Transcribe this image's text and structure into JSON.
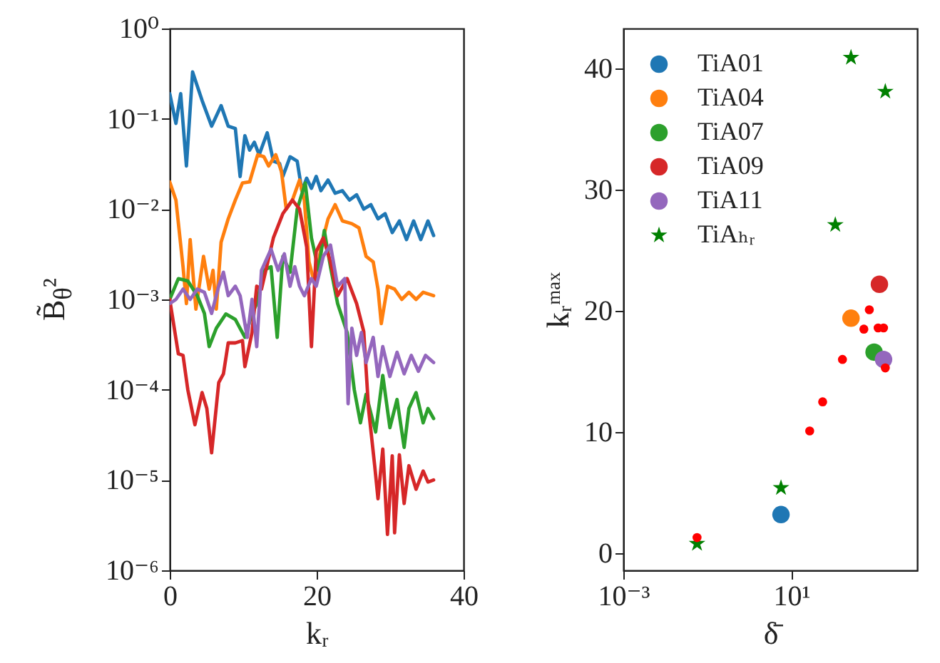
{
  "chart_data": [
    {
      "type": "line",
      "xlabel": "kᵣ",
      "ylabel": "B̃$_{θ}$²",
      "log": true,
      "xlim": [
        0,
        40
      ],
      "xticks": [
        0,
        20,
        40
      ],
      "ylim": [
        1e-06,
        1
      ],
      "yticks": [
        {
          "value": 1e-06,
          "label": "10⁻⁶"
        },
        {
          "value": 1e-05,
          "label": "10⁻⁵"
        },
        {
          "value": 0.0001,
          "label": "10⁻⁴"
        },
        {
          "value": 0.001,
          "label": "10⁻³"
        },
        {
          "value": 0.01,
          "label": "10⁻²"
        },
        {
          "value": 0.1,
          "label": "10⁻¹"
        },
        {
          "value": 1,
          "label": "10⁰"
        }
      ],
      "grid": false,
      "series": [
        {
          "color": "#1f77b4",
          "x": [
            0,
            0.84,
            1.49,
            2.27,
            3.11,
            4.4,
            5.7,
            6.99,
            7.96,
            8.93,
            9.58,
            10.23,
            10.87,
            11.52,
            12.17,
            13.27,
            14.11,
            14.95,
            15.4,
            16.38,
            17.35,
            17.99,
            18.64,
            19.29,
            19.94,
            20.58,
            21.55,
            22.52,
            23.5,
            24.47,
            25.44,
            26.41,
            27.38,
            28.35,
            29.32,
            30.29,
            31.26,
            32.23,
            33.2,
            34.17,
            35.15,
            35.92
          ],
          "values": [
            0.19,
            0.089,
            0.19,
            0.03,
            0.33,
            0.16,
            0.083,
            0.14,
            0.083,
            0.078,
            0.023,
            0.065,
            0.045,
            0.055,
            0.04,
            0.07,
            0.034,
            0.032,
            0.023,
            0.038,
            0.034,
            0.016,
            0.022,
            0.017,
            0.023,
            0.016,
            0.021,
            0.015,
            0.016,
            0.0126,
            0.0144,
            0.01,
            0.0112,
            0.0078,
            0.0089,
            0.0055,
            0.0074,
            0.0046,
            0.0074,
            0.0046,
            0.0074,
            0.0051
          ]
        },
        {
          "color": "#ff7f0e",
          "x": [
            0,
            0.84,
            1.81,
            2.27,
            2.78,
            3.56,
            4.6,
            5.37,
            5.89,
            6.34,
            6.99,
            7.96,
            8.93,
            9.9,
            10.87,
            11.97,
            12.82,
            13.46,
            14.43,
            15.21,
            15.86,
            16.7,
            17.67,
            18.32,
            18.96,
            19.81,
            20.58,
            21.55,
            22.52,
            23.5,
            24.79,
            25.76,
            26.73,
            27.7,
            28.35,
            28.8,
            29.64,
            30.61,
            31.58,
            32.56,
            33.53,
            34.5,
            35.92
          ],
          "values": [
            0.02,
            0.0126,
            0.0023,
            0.0009,
            0.0046,
            0.00078,
            0.003,
            0.0013,
            0.0021,
            0.00078,
            0.0043,
            0.0078,
            0.0126,
            0.0195,
            0.02,
            0.04,
            0.038,
            0.03,
            0.04,
            0.026,
            0.01,
            0.0126,
            0.021,
            0.0126,
            0.0026,
            0.0014,
            0.0038,
            0.0078,
            0.0112,
            0.0074,
            0.0069,
            0.0062,
            0.003,
            0.0026,
            0.0013,
            0.00054,
            0.0014,
            0.0013,
            0.001,
            0.0012,
            0.001,
            0.0012,
            0.0011
          ]
        },
        {
          "color": "#2ca02c",
          "x": [
            0,
            1.17,
            2.46,
            3.75,
            4.72,
            5.37,
            6.34,
            7.64,
            8.93,
            10.23,
            11.2,
            11.84,
            12.82,
            13.79,
            14.63,
            15.4,
            16.38,
            17.35,
            18.45,
            19.29,
            20.26,
            21.04,
            21.88,
            22.85,
            24.15,
            25.12,
            25.96,
            26.73,
            28.03,
            29,
            29.97,
            30.94,
            31.91,
            32.56,
            33.53,
            34.5,
            35.15,
            35.92
          ],
          "values": [
            0.001,
            0.0017,
            0.0016,
            0.0011,
            0.0007,
            0.0003,
            0.00048,
            0.00069,
            0.0006,
            0.00038,
            0.00069,
            0.0009,
            0.0021,
            0.0023,
            0.00038,
            0.003,
            0.002,
            0.01,
            0.0195,
            0.0048,
            0.0021,
            0.0058,
            0.0023,
            0.0009,
            0.00043,
            0.0001,
            4.3e-05,
            8.9e-05,
            3.4e-05,
            0.000144,
            3.8e-05,
            7.8e-05,
            2.3e-05,
            6.2e-05,
            9.3e-05,
            4.3e-05,
            6.2e-05,
            4.8e-05
          ]
        },
        {
          "color": "#d62728",
          "x": [
            0,
            1.17,
            1.81,
            2.46,
            3.43,
            4.4,
            5.05,
            5.7,
            6.67,
            7.31,
            7.96,
            8.93,
            9.9,
            10.23,
            11.2,
            11.84,
            12.49,
            14.11,
            15.4,
            16.7,
            17.67,
            18.64,
            19.29,
            19.94,
            20.91,
            21.88,
            22.85,
            24.15,
            25.44,
            26.41,
            27.06,
            27.9,
            28.35,
            29,
            29.64,
            30.29,
            30.61,
            31.26,
            31.91,
            32.56,
            33.53,
            34.5,
            35.15,
            35.92
          ],
          "values": [
            0.001,
            0.00025,
            0.00024,
            0.0001,
            4.1e-05,
            9.3e-05,
            6.2e-05,
            2e-05,
            0.00012,
            0.00015,
            0.00033,
            0.00033,
            0.00035,
            0.00018,
            0.00043,
            0.0014,
            0.0013,
            0.0048,
            0.0089,
            0.0126,
            0.01,
            0.0038,
            0.0003,
            0.0034,
            0.0048,
            0.0026,
            0.0011,
            0.0017,
            0.0009,
            0.00044,
            6.2e-05,
            1.44e-05,
            6.2e-06,
            2.2e-05,
            2.5e-06,
            1.85e-05,
            2.6e-06,
            1.9e-05,
            5.5e-06,
            1.44e-05,
            7.9e-06,
            1.26e-05,
            9.5e-06,
            1e-05
          ]
        },
        {
          "color": "#9467bd",
          "x": [
            0,
            0.84,
            1.81,
            2.78,
            3.75,
            4.72,
            5.7,
            6.67,
            7.31,
            7.96,
            8.93,
            9.58,
            10.55,
            11.2,
            11.84,
            12.49,
            13.79,
            14.75,
            15.6,
            16.38,
            17.02,
            17.67,
            18.32,
            19.29,
            19.94,
            20.91,
            21.88,
            22.85,
            23.82,
            24.28,
            24.79,
            25.44,
            26.09,
            26.73,
            27.7,
            28.35,
            29,
            29.97,
            30.94,
            31.91,
            32.88,
            33.85,
            34.82,
            35.92
          ],
          "values": [
            0.0009,
            0.001,
            0.0013,
            0.001,
            0.0013,
            0.0012,
            0.0007,
            0.0014,
            0.002,
            0.0011,
            0.0014,
            0.0011,
            0.00038,
            0.001,
            0.0003,
            0.0021,
            0.0036,
            0.0021,
            0.0032,
            0.0014,
            0.0023,
            0.0014,
            0.0011,
            0.0017,
            0.0014,
            0.003,
            0.004,
            0.0014,
            0.0017,
            7e-05,
            0.00048,
            0.00024,
            0.00043,
            0.0002,
            0.00038,
            0.00014,
            0.0003,
            0.00014,
            0.00026,
            0.00015,
            0.00024,
            0.00016,
            0.00024,
            0.0002
          ]
        }
      ]
    },
    {
      "type": "scatter",
      "xlabel": "δ̄",
      "ylabel": "kᵣᵐᵃˣ",
      "log": "x",
      "xlim": [
        0.001,
        10000
      ],
      "xticks": [
        {
          "value": 0.001,
          "label": "10⁻³"
        },
        {
          "value": 10,
          "label": "10¹"
        }
      ],
      "ylim": [
        -1.4,
        43.3
      ],
      "yticks": [
        0,
        10,
        20,
        30,
        40
      ],
      "grid": false,
      "legend": "top left",
      "series": [
        {
          "name": "TiA01",
          "color": "#1f77b4",
          "marker": "circle",
          "x": [
            5.7
          ],
          "values": [
            3.2
          ]
        },
        {
          "name": "TiA04",
          "color": "#ff7f0e",
          "marker": "circle",
          "x": [
            265
          ],
          "values": [
            19.4
          ]
        },
        {
          "name": "TiA07",
          "color": "#2ca02c",
          "marker": "circle",
          "x": [
            940
          ],
          "values": [
            16.6
          ]
        },
        {
          "name": "TiA09",
          "color": "#d62728",
          "marker": "circle",
          "x": [
            1260
          ],
          "values": [
            22.2
          ]
        },
        {
          "name": "TiA11",
          "color": "#9467bd",
          "marker": "circle",
          "x": [
            1580
          ],
          "values": [
            16.0
          ]
        },
        {
          "name": "TiAₕᵣ",
          "color": "#008000",
          "marker": "star",
          "x": [
            0.057,
            5.7,
            112,
            265,
            1740
          ],
          "values": [
            0.8,
            5.4,
            27.1,
            40.9,
            38.1
          ]
        },
        {
          "color": "#ff0000",
          "marker": "circle",
          "x": [
            0.057,
            27.5,
            56,
            166,
            537,
            724,
            1175,
            1580,
            1740
          ],
          "values": [
            1.3,
            10.1,
            12.5,
            16.0,
            18.5,
            20.1,
            18.6,
            18.6,
            15.3
          ]
        }
      ]
    }
  ]
}
